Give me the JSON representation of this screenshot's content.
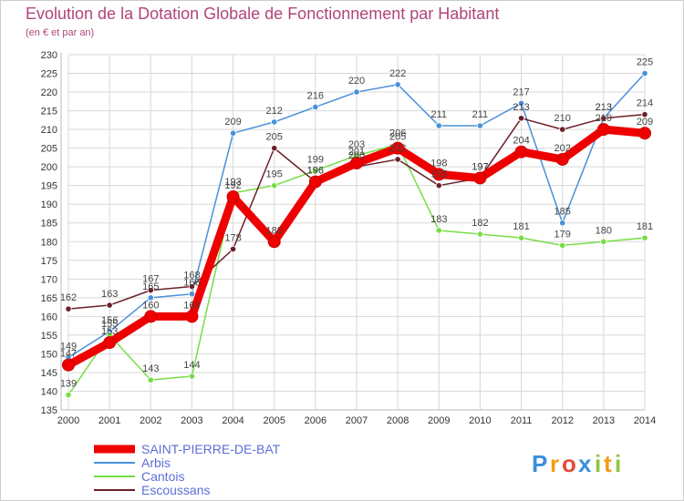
{
  "chart_data": {
    "type": "line",
    "title": "Evolution de la Dotation Globale de Fonctionnement par Habitant",
    "subtitle": "(en € et par an)",
    "xlabel": "",
    "ylabel": "",
    "x": [
      2000,
      2001,
      2002,
      2003,
      2004,
      2005,
      2006,
      2007,
      2008,
      2009,
      2010,
      2011,
      2012,
      2013,
      2014
    ],
    "ylim": [
      135,
      230
    ],
    "yticks": [
      135,
      140,
      145,
      150,
      155,
      160,
      165,
      170,
      175,
      180,
      185,
      190,
      195,
      200,
      205,
      210,
      215,
      220,
      225,
      230
    ],
    "grid": true,
    "legend_position": "bottom-left",
    "series": [
      {
        "name": "SAINT-PIERRE-DE-BAT",
        "color": "#ee0000",
        "values": [
          147,
          153,
          160,
          160,
          192,
          180,
          196,
          201,
          205,
          198,
          197,
          204,
          202,
          210,
          209
        ]
      },
      {
        "name": "Arbis",
        "color": "#4a90d9",
        "values": [
          149,
          156,
          165,
          166,
          209,
          212,
          216,
          220,
          222,
          211,
          211,
          217,
          185,
          213,
          225
        ]
      },
      {
        "name": "Cantois",
        "color": "#77dd44",
        "values": [
          139,
          155,
          143,
          144,
          193,
          195,
          199,
          203,
          206,
          183,
          182,
          181,
          179,
          180,
          181
        ]
      },
      {
        "name": "Escoussans",
        "color": "#6b1f2a",
        "values": [
          162,
          163,
          167,
          168,
          178,
          205,
          196,
          200,
          202,
          195,
          197,
          213,
          210,
          213,
          214
        ]
      }
    ]
  },
  "logo": {
    "letters": [
      "P",
      "r",
      "o",
      "x",
      "i",
      "t",
      "i"
    ]
  }
}
